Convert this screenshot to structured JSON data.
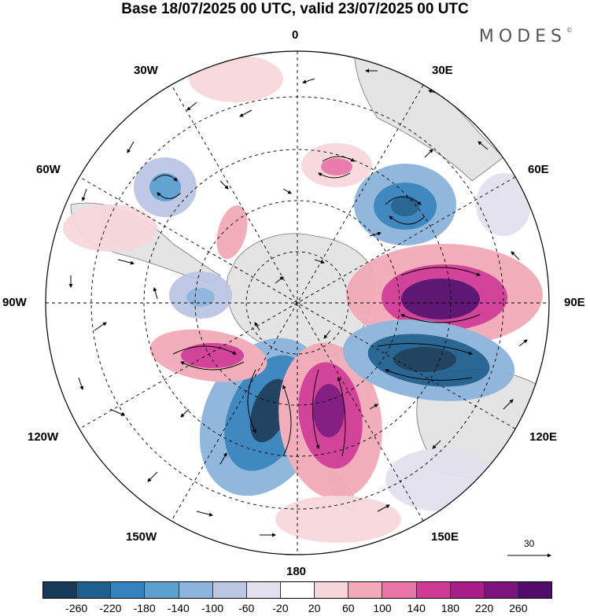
{
  "title": "Base 18/07/2025 00 UTC, valid 23/07/2025 00 UTC",
  "brand": "MODES",
  "brand_mark": "©",
  "map": {
    "projection": "south polar stereographic",
    "longitude_labels": {
      "top": "0",
      "top_left": "30W",
      "top_right": "30E",
      "upper_left": "60W",
      "upper_right": "60E",
      "left": "90W",
      "right": "90E",
      "lower_left": "120W",
      "lower_right": "120E",
      "bottom_left": "150W",
      "bottom_right": "150E",
      "bottom": "180"
    },
    "reference_vector": "30",
    "anomaly_centers": [
      {
        "sign": "negative",
        "value": -260,
        "lon_region": "160W"
      },
      {
        "sign": "positive",
        "value": 260,
        "lon_region": "170E"
      },
      {
        "sign": "positive",
        "value": 260,
        "lon_region": "80E"
      },
      {
        "sign": "negative",
        "value": -220,
        "lon_region": "110E"
      },
      {
        "sign": "negative",
        "value": -180,
        "lon_region": "50E"
      },
      {
        "sign": "positive",
        "value": 180,
        "lon_region": "110W"
      },
      {
        "sign": "negative",
        "value": -140,
        "lon_region": "40W"
      },
      {
        "sign": "positive",
        "value": 100,
        "lon_region": "10E"
      },
      {
        "sign": "negative",
        "value": -100,
        "lon_region": "85W"
      },
      {
        "sign": "positive",
        "value": 100,
        "lon_region": "60W"
      }
    ]
  },
  "colorbar": {
    "colors": [
      "#173a59",
      "#1f5f8e",
      "#3583bd",
      "#5a9fd0",
      "#8db4dc",
      "#bcc6e3",
      "#e3e1ef",
      "#ffffff",
      "#f8d7dc",
      "#f2aab8",
      "#e876a6",
      "#cf3b94",
      "#a81d88",
      "#7e147e",
      "#540c6c"
    ],
    "ticks": [
      "-260",
      "-220",
      "-180",
      "-140",
      "-100",
      "-60",
      "-20",
      "20",
      "60",
      "100",
      "140",
      "180",
      "220",
      "260"
    ]
  }
}
